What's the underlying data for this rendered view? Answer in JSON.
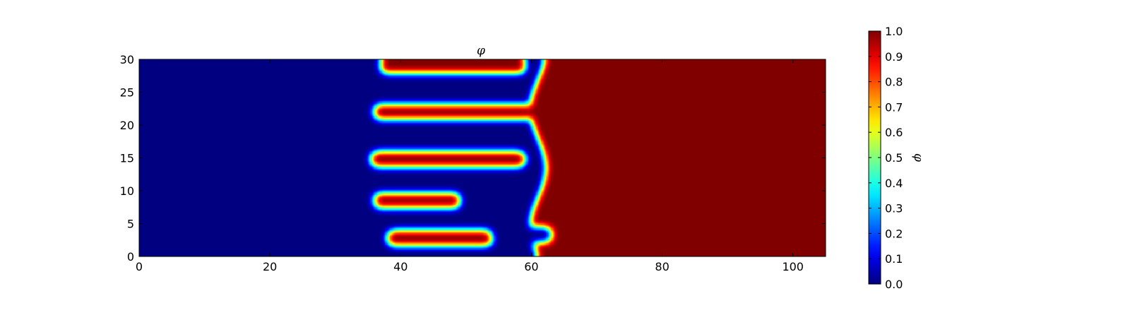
{
  "chart_data": {
    "type": "heatmap",
    "title": "φ",
    "xlabel": "",
    "ylabel": "",
    "xlim": [
      0,
      105
    ],
    "ylim": [
      0,
      30
    ],
    "xticks": [
      0,
      20,
      40,
      60,
      80,
      100
    ],
    "yticks": [
      0,
      5,
      10,
      15,
      20,
      25,
      30
    ],
    "colormap": "jet",
    "grid": false,
    "colorbar": {
      "label": "φ",
      "range": [
        0.0,
        1.0
      ],
      "ticks": [
        "0.0",
        "0.1",
        "0.2",
        "0.3",
        "0.4",
        "0.5",
        "0.6",
        "0.7",
        "0.8",
        "0.9",
        "1.0"
      ]
    },
    "field": {
      "description_values": "phase field: phi = 0 left region, phi = 1 right region, interlocking fingers between x≈36 and x≈62",
      "left_phase_value": 0.0,
      "right_phase_value": 1.0,
      "interface_width": 0.9,
      "red_fingers": [
        {
          "y": 29.0,
          "x_start": 38.0,
          "x_end": 58.0
        },
        {
          "y": 22.0,
          "x_start": 37.0,
          "x_end": 59.0
        },
        {
          "y": 14.8,
          "x_start": 36.5,
          "x_end": 58.0
        },
        {
          "y": 8.5,
          "x_start": 37.0,
          "x_end": 48.0
        },
        {
          "y": 2.8,
          "x_start": 39.0,
          "x_end": 53.0
        }
      ],
      "blue_fingers": [
        {
          "y": 25.5,
          "x_start": 57.5,
          "x_end": 36.5
        },
        {
          "y": 19.0,
          "x_start": 59.0,
          "x_end": 37.0
        },
        {
          "y": 11.5,
          "x_start": 60.0,
          "x_end": 37.5
        },
        {
          "y": 3.3,
          "x_start": 62.0,
          "x_end": 55.0
        }
      ]
    }
  }
}
